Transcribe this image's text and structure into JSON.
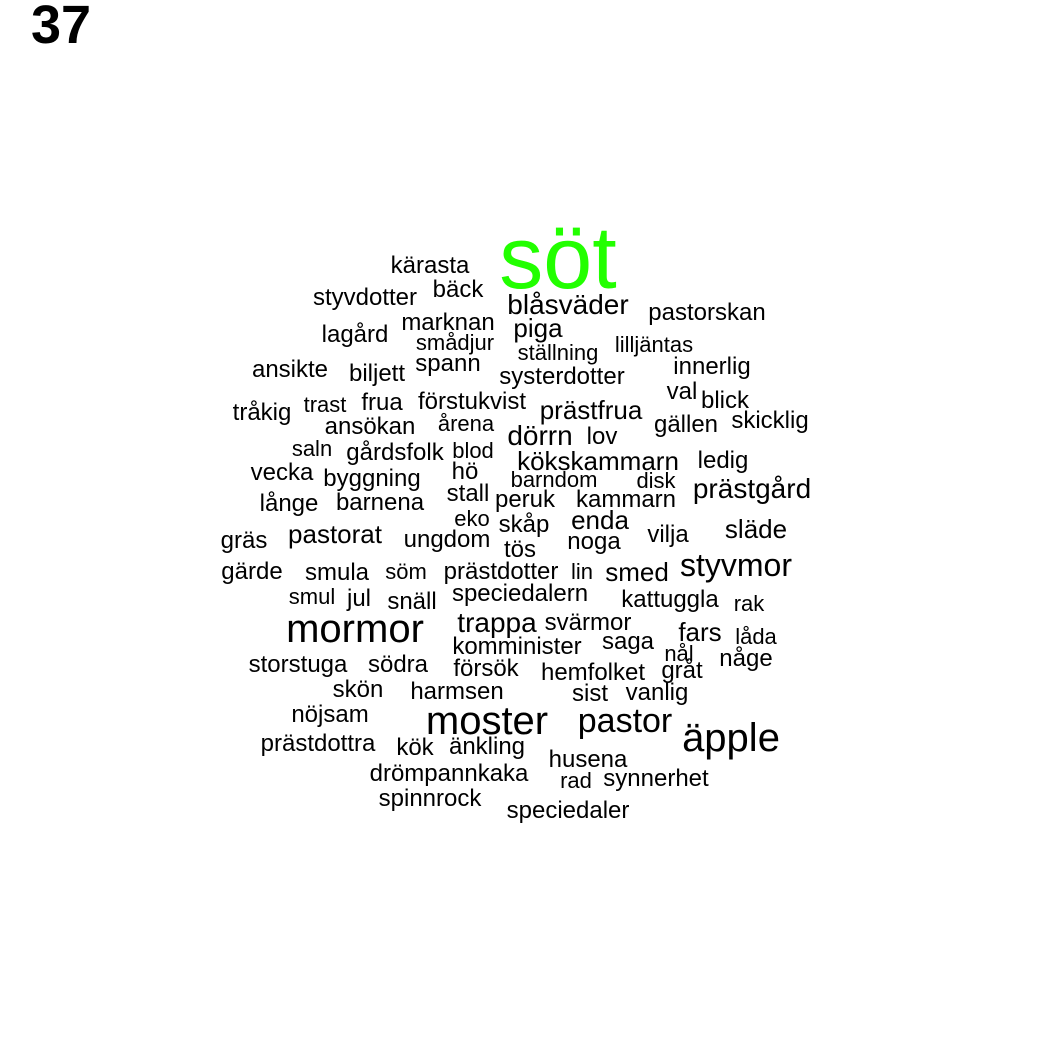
{
  "page": {
    "number": "37"
  },
  "colors": {
    "highlight": "#22ff00",
    "default": "#000000"
  },
  "highlight_word": "söt",
  "words": [
    "söt",
    "kärasta",
    "bäck",
    "styvdotter",
    "blåsväder",
    "pastorskan",
    "marknan",
    "piga",
    "lagård",
    "smådjur",
    "ställning",
    "lilljäntas",
    "spann",
    "ansikte",
    "biljett",
    "systerdotter",
    "innerlig",
    "val",
    "blick",
    "trast",
    "frua",
    "förstukvist",
    "prästfrua",
    "tråkig",
    "ansökan",
    "årena",
    "skicklig",
    "gällen",
    "dörrn",
    "lov",
    "saln",
    "gårdsfolk",
    "blod",
    "vecka",
    "hö",
    "kökskammarn",
    "ledig",
    "byggning",
    "barndom",
    "disk",
    "prästgård",
    "stall",
    "peruk",
    "kammarn",
    "långe",
    "barnena",
    "eko",
    "enda",
    "släde",
    "skåp",
    "pastorat",
    "vilja",
    "gräs",
    "ungdom",
    "noga",
    "tös",
    "styvmor",
    "gärde",
    "smula",
    "söm",
    "prästdotter",
    "lin",
    "smed",
    "smul",
    "jul",
    "speciedalern",
    "kattuggla",
    "snäll",
    "rak",
    "trappa",
    "svärmor",
    "mormor",
    "fars",
    "låda",
    "komminister",
    "saga",
    "nål",
    "någe",
    "storstuga",
    "södra",
    "försök",
    "hemfolket",
    "gråt",
    "skön",
    "harmsen",
    "sist",
    "vanlig",
    "nöjsam",
    "moster",
    "pastor",
    "äpple",
    "prästdottra",
    "kök",
    "änkling",
    "husena",
    "drömpannkaka",
    "rad",
    "synnerhet",
    "spinnrock",
    "speciedaler"
  ]
}
